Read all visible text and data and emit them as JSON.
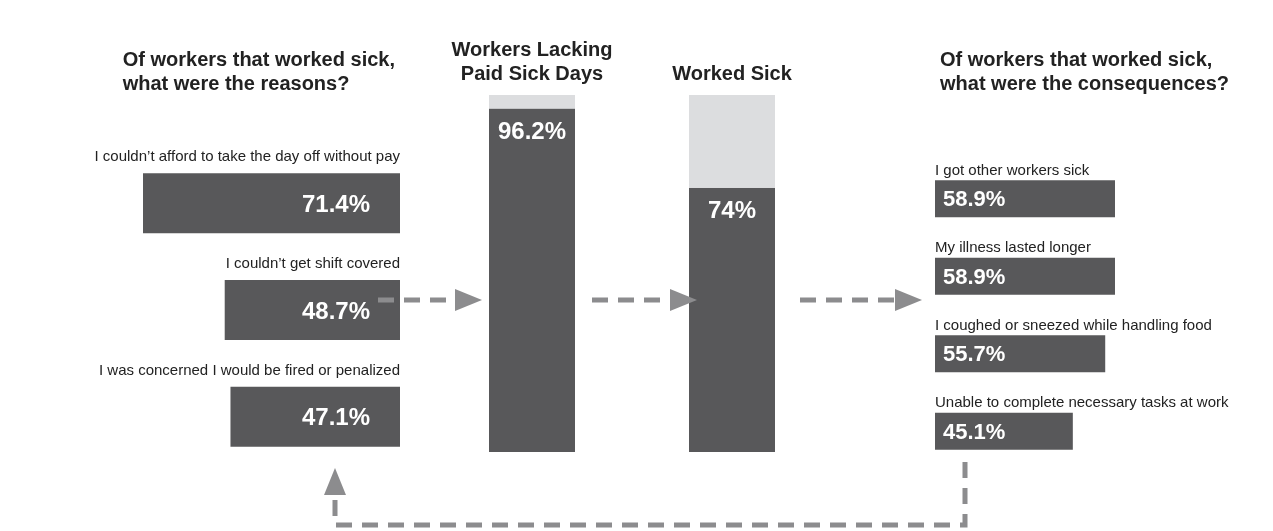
{
  "chart_data": [
    {
      "type": "bar",
      "orientation": "horizontal",
      "title": "Of workers that worked sick,\nwhat were the reasons?",
      "categories": [
        "I couldn’t afford to take the day off without pay",
        "I couldn’t get shift covered",
        "I was concerned I would be fired or penalized"
      ],
      "values": [
        71.4,
        48.7,
        47.1
      ],
      "value_labels": [
        "71.4%",
        "48.7%",
        "47.1%"
      ],
      "color": "#58585a"
    },
    {
      "type": "bar",
      "stacked": true,
      "categories": [
        "Workers Lacking\nPaid Sick Days",
        "Worked Sick"
      ],
      "series": [
        {
          "color": "#58585a",
          "values": [
            96.2,
            74
          ],
          "value_labels": [
            "96.2%",
            "74%"
          ]
        },
        {
          "color": "#dcdddf",
          "values": [
            3.8,
            26
          ]
        }
      ]
    },
    {
      "type": "bar",
      "orientation": "horizontal",
      "title": "Of workers that worked sick,\nwhat were the consequences?",
      "categories": [
        "I got other workers sick",
        "My illness lasted longer",
        "I coughed or sneezed while handling food",
        "Unable to complete necessary tasks at work"
      ],
      "values": [
        58.9,
        58.9,
        55.7,
        45.1
      ],
      "value_labels": [
        "58.9%",
        "58.9%",
        "55.7%",
        "45.1%"
      ],
      "color": "#58585a"
    }
  ]
}
